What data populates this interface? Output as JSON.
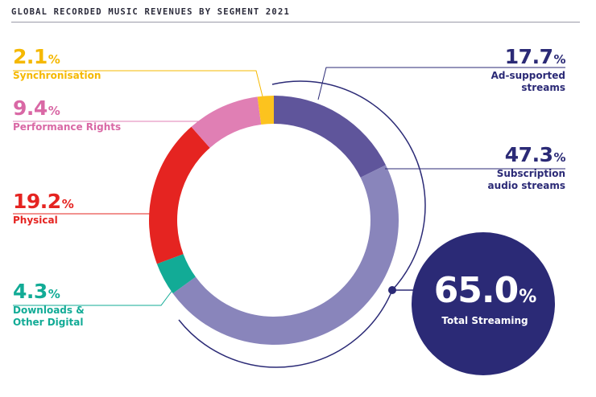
{
  "chart_data": {
    "type": "pie",
    "title": "GLOBAL RECORDED MUSIC REVENUES BY SEGMENT 2021",
    "slices": [
      {
        "label": "Ad-supported streams",
        "value": 17.7,
        "color": "#5f559b"
      },
      {
        "label": "Subscription audio streams",
        "value": 47.3,
        "color": "#8985bb"
      },
      {
        "label": "Downloads & Other Digital",
        "value": 4.3,
        "color": "#12ab96"
      },
      {
        "label": "Physical",
        "value": 19.2,
        "color": "#e52421"
      },
      {
        "label": "Performance Rights",
        "value": 9.4,
        "color": "#e07fb4"
      },
      {
        "label": "Synchronisation",
        "value": 2.1,
        "color": "#fcc31e"
      }
    ],
    "total_streaming": {
      "value": 65.0,
      "label": "Total Streaming",
      "color": "#2b2a76"
    }
  },
  "labels": {
    "synch": {
      "value": "2.1",
      "name": "Synchronisation"
    },
    "perf": {
      "value": "9.4",
      "name": "Performance Rights"
    },
    "phys": {
      "value": "19.2",
      "name": "Physical"
    },
    "down": {
      "value": "4.3",
      "name_line1": "Downloads &",
      "name_line2": "Other Digital"
    },
    "ad": {
      "value": "17.7",
      "name_line1": "Ad-supported",
      "name_line2": "streams"
    },
    "subs": {
      "value": "47.3",
      "name_line1": "Subscription",
      "name_line2": "audio streams"
    },
    "total": {
      "value": "65.0",
      "name": "Total Streaming"
    },
    "percent_sign": "%"
  },
  "colors": {
    "synch_text": "#f5b800",
    "perf_text": "#d968a5",
    "phys_text": "#e52421",
    "down_text": "#12ab96",
    "streaming_text": "#2b2a76",
    "rule": "#9a9aa8"
  }
}
